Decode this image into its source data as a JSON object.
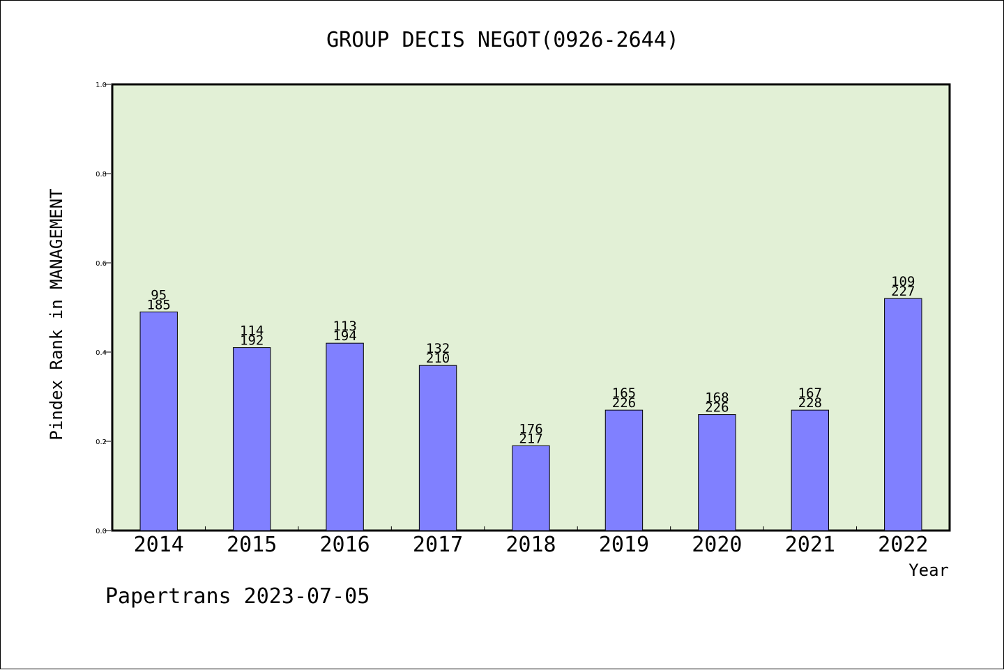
{
  "chart_data": {
    "type": "bar",
    "title": "GROUP DECIS NEGOT(0926-2644)",
    "xlabel": "Year",
    "ylabel": "Pindex Rank in MANAGEMENT",
    "ylim": [
      0,
      1.0
    ],
    "yticks": [
      "0.0",
      "0.2",
      "0.4",
      "0.6",
      "0.8",
      "1.0"
    ],
    "categories": [
      "2014",
      "2015",
      "2016",
      "2017",
      "2018",
      "2019",
      "2020",
      "2021",
      "2022"
    ],
    "values": [
      0.49,
      0.41,
      0.42,
      0.37,
      0.19,
      0.27,
      0.26,
      0.27,
      0.52
    ],
    "label_top": [
      "95",
      "114",
      "113",
      "132",
      "176",
      "165",
      "168",
      "167",
      "109"
    ],
    "label_bottom": [
      "185",
      "192",
      "194",
      "210",
      "217",
      "226",
      "226",
      "228",
      "227"
    ],
    "grid": false
  },
  "footer": "Papertrans 2023-07-05",
  "colors": {
    "plot_bg": "#e2f0d6",
    "bar_fill": "#8080ff",
    "bar_stroke": "#000000",
    "axis": "#000000"
  }
}
